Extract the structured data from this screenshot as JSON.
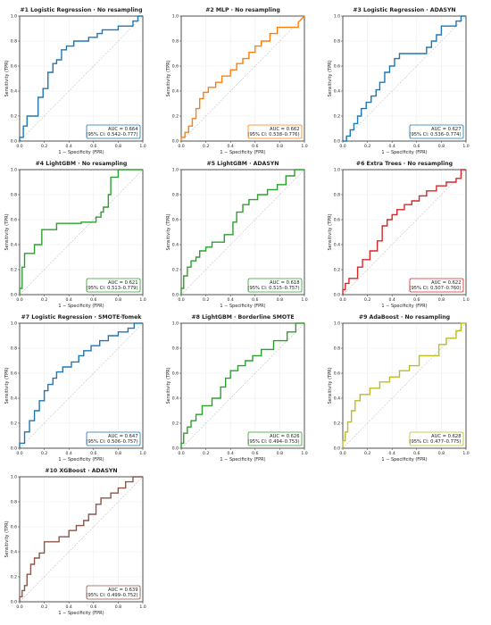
{
  "chart_data": [
    {
      "type": "line",
      "title": "#1  Logistic Regression  ·  No resampling",
      "xlabel": "1 − Specificity (FPR)",
      "ylabel": "Sensitivity (TPR)",
      "xlim": [
        0,
        1
      ],
      "ylim": [
        0,
        1
      ],
      "xticks": [
        "0.0",
        "0.2",
        "0.4",
        "0.6",
        "0.8",
        "1.0"
      ],
      "yticks": [
        "0.0",
        "0.2",
        "0.4",
        "0.6",
        "0.8",
        "1.0"
      ],
      "grid": true,
      "color": "#1f77b4",
      "auc_text": "AUC = 0.664",
      "ci_text": "(95% CI: 0.542–0.777)",
      "legend": "bottom-right",
      "reference_line": "diagonal",
      "x": [
        0,
        0,
        0.03,
        0.03,
        0.06,
        0.06,
        0.15,
        0.15,
        0.19,
        0.19,
        0.23,
        0.23,
        0.27,
        0.27,
        0.3,
        0.3,
        0.34,
        0.34,
        0.38,
        0.38,
        0.44,
        0.44,
        0.56,
        0.56,
        0.63,
        0.63,
        0.67,
        0.67,
        0.8,
        0.8,
        0.92,
        0.92,
        0.96,
        0.96,
        1.0
      ],
      "y": [
        0,
        0.03,
        0.03,
        0.12,
        0.12,
        0.2,
        0.2,
        0.35,
        0.35,
        0.42,
        0.42,
        0.55,
        0.55,
        0.62,
        0.62,
        0.65,
        0.65,
        0.73,
        0.73,
        0.76,
        0.76,
        0.8,
        0.8,
        0.83,
        0.83,
        0.86,
        0.86,
        0.89,
        0.89,
        0.92,
        0.92,
        0.96,
        0.96,
        1.0,
        1.0
      ]
    },
    {
      "type": "line",
      "title": "#2  MLP  ·  No resampling",
      "xlabel": "1 − Specificity (FPR)",
      "ylabel": "Sensitivity (TPR)",
      "xlim": [
        0,
        1
      ],
      "ylim": [
        0,
        1
      ],
      "xticks": [
        "0.0",
        "0.2",
        "0.4",
        "0.6",
        "0.8",
        "1.0"
      ],
      "yticks": [
        "0.0",
        "0.2",
        "0.4",
        "0.6",
        "0.8",
        "1.0"
      ],
      "grid": true,
      "color": "#ff7f0e",
      "auc_text": "AUC = 0.662",
      "ci_text": "(95% CI: 0.538–0.776)",
      "legend": "bottom-right",
      "reference_line": "diagonal",
      "x": [
        0,
        0,
        0.03,
        0.03,
        0.06,
        0.06,
        0.09,
        0.09,
        0.12,
        0.12,
        0.15,
        0.15,
        0.18,
        0.18,
        0.22,
        0.22,
        0.28,
        0.28,
        0.33,
        0.33,
        0.4,
        0.4,
        0.45,
        0.45,
        0.5,
        0.5,
        0.55,
        0.55,
        0.6,
        0.6,
        0.65,
        0.65,
        0.72,
        0.72,
        0.78,
        0.78,
        0.95,
        0.95,
        1.0
      ],
      "y": [
        0,
        0.03,
        0.03,
        0.07,
        0.07,
        0.12,
        0.12,
        0.18,
        0.18,
        0.26,
        0.26,
        0.34,
        0.34,
        0.39,
        0.39,
        0.43,
        0.43,
        0.47,
        0.47,
        0.52,
        0.52,
        0.57,
        0.57,
        0.62,
        0.62,
        0.66,
        0.66,
        0.71,
        0.71,
        0.76,
        0.76,
        0.8,
        0.8,
        0.86,
        0.86,
        0.91,
        0.91,
        0.95,
        1.0
      ]
    },
    {
      "type": "line",
      "title": "#3  Logistic Regression  ·  ADASYN",
      "xlabel": "1 − Specificity (FPR)",
      "ylabel": "Sensitivity (TPR)",
      "xlim": [
        0,
        1
      ],
      "ylim": [
        0,
        1
      ],
      "xticks": [
        "0.0",
        "0.2",
        "0.4",
        "0.6",
        "0.8",
        "1.0"
      ],
      "yticks": [
        "0.0",
        "0.2",
        "0.4",
        "0.6",
        "0.8",
        "1.0"
      ],
      "grid": true,
      "color": "#1f77b4",
      "auc_text": "AUC = 0.627",
      "ci_text": "(95% CI: 0.536–0.774)",
      "legend": "bottom-right",
      "reference_line": "diagonal",
      "x": [
        0,
        0.03,
        0.03,
        0.06,
        0.06,
        0.09,
        0.09,
        0.12,
        0.12,
        0.15,
        0.15,
        0.19,
        0.19,
        0.23,
        0.23,
        0.27,
        0.27,
        0.3,
        0.3,
        0.34,
        0.34,
        0.38,
        0.38,
        0.42,
        0.42,
        0.46,
        0.46,
        0.68,
        0.68,
        0.72,
        0.72,
        0.76,
        0.76,
        0.8,
        0.8,
        0.92,
        0.92,
        0.96,
        0.96,
        1.0
      ],
      "y": [
        0,
        0,
        0.04,
        0.04,
        0.09,
        0.09,
        0.14,
        0.14,
        0.2,
        0.2,
        0.26,
        0.26,
        0.31,
        0.31,
        0.36,
        0.36,
        0.41,
        0.41,
        0.47,
        0.47,
        0.55,
        0.55,
        0.6,
        0.6,
        0.66,
        0.66,
        0.7,
        0.7,
        0.75,
        0.75,
        0.8,
        0.8,
        0.85,
        0.85,
        0.92,
        0.92,
        0.96,
        0.96,
        1.0,
        1.0
      ]
    },
    {
      "type": "line",
      "title": "#4  LightGBM  ·  No resampling",
      "xlabel": "1 − Specificity (FPR)",
      "ylabel": "Sensitivity (TPR)",
      "xlim": [
        0,
        1
      ],
      "ylim": [
        0,
        1
      ],
      "xticks": [
        "0.0",
        "0.2",
        "0.4",
        "0.6",
        "0.8",
        "1.0"
      ],
      "yticks": [
        "0.0",
        "0.2",
        "0.4",
        "0.6",
        "0.8",
        "1.0"
      ],
      "grid": true,
      "color": "#2ca02c",
      "auc_text": "AUC = 0.621",
      "ci_text": "(95% CI: 0.513–0.779)",
      "legend": "bottom-right",
      "reference_line": "diagonal",
      "x": [
        0,
        0,
        0.02,
        0.02,
        0.04,
        0.04,
        0.12,
        0.12,
        0.18,
        0.18,
        0.3,
        0.3,
        0.5,
        0.5,
        0.62,
        0.62,
        0.66,
        0.66,
        0.68,
        0.68,
        0.72,
        0.72,
        0.74,
        0.74,
        0.8,
        0.8,
        1.0
      ],
      "y": [
        0,
        0.05,
        0.05,
        0.22,
        0.22,
        0.33,
        0.33,
        0.4,
        0.4,
        0.52,
        0.52,
        0.57,
        0.57,
        0.58,
        0.58,
        0.62,
        0.62,
        0.66,
        0.66,
        0.7,
        0.7,
        0.8,
        0.8,
        0.94,
        0.94,
        1.0,
        1.0
      ]
    },
    {
      "type": "line",
      "title": "#5  LightGBM  ·  ADASYN",
      "xlabel": "1 − Specificity (FPR)",
      "ylabel": "Sensitivity (TPR)",
      "xlim": [
        0,
        1
      ],
      "ylim": [
        0,
        1
      ],
      "xticks": [
        "0.0",
        "0.2",
        "0.4",
        "0.6",
        "0.8",
        "1.0"
      ],
      "yticks": [
        "0.0",
        "0.2",
        "0.4",
        "0.6",
        "0.8",
        "1.0"
      ],
      "grid": true,
      "color": "#2ca02c",
      "auc_text": "AUC = 0.618",
      "ci_text": "(95% CI: 0.515–0.757)",
      "legend": "bottom-right",
      "reference_line": "diagonal",
      "x": [
        0,
        0,
        0.02,
        0.02,
        0.05,
        0.05,
        0.08,
        0.08,
        0.12,
        0.12,
        0.15,
        0.15,
        0.2,
        0.2,
        0.25,
        0.25,
        0.35,
        0.35,
        0.42,
        0.42,
        0.45,
        0.45,
        0.5,
        0.5,
        0.55,
        0.55,
        0.62,
        0.62,
        0.7,
        0.7,
        0.78,
        0.78,
        0.85,
        0.85,
        0.92,
        0.92,
        1.0
      ],
      "y": [
        0,
        0.05,
        0.05,
        0.15,
        0.15,
        0.22,
        0.22,
        0.27,
        0.27,
        0.3,
        0.3,
        0.35,
        0.35,
        0.38,
        0.38,
        0.42,
        0.42,
        0.48,
        0.48,
        0.58,
        0.58,
        0.66,
        0.66,
        0.72,
        0.72,
        0.76,
        0.76,
        0.8,
        0.8,
        0.84,
        0.84,
        0.88,
        0.88,
        0.95,
        0.95,
        1.0,
        1.0
      ]
    },
    {
      "type": "line",
      "title": "#6  Extra Trees  ·  No resampling",
      "xlabel": "1 − Specificity (FPR)",
      "ylabel": "Sensitivity (TPR)",
      "xlim": [
        0,
        1
      ],
      "ylim": [
        0,
        1
      ],
      "xticks": [
        "0.0",
        "0.2",
        "0.4",
        "0.6",
        "0.8",
        "1.0"
      ],
      "yticks": [
        "0.0",
        "0.2",
        "0.4",
        "0.6",
        "0.8",
        "1.0"
      ],
      "grid": true,
      "color": "#d62728",
      "auc_text": "AUC = 0.622",
      "ci_text": "(95% CI: 0.507–0.760)",
      "legend": "bottom-right",
      "reference_line": "diagonal",
      "x": [
        0,
        0,
        0.02,
        0.02,
        0.05,
        0.05,
        0.12,
        0.12,
        0.16,
        0.16,
        0.22,
        0.22,
        0.28,
        0.28,
        0.32,
        0.32,
        0.36,
        0.36,
        0.4,
        0.4,
        0.44,
        0.44,
        0.5,
        0.5,
        0.56,
        0.56,
        0.62,
        0.62,
        0.68,
        0.68,
        0.76,
        0.76,
        0.84,
        0.84,
        0.92,
        0.92,
        0.96,
        0.96,
        1.0
      ],
      "y": [
        0,
        0.04,
        0.04,
        0.09,
        0.09,
        0.13,
        0.13,
        0.22,
        0.22,
        0.28,
        0.28,
        0.35,
        0.35,
        0.43,
        0.43,
        0.55,
        0.55,
        0.6,
        0.6,
        0.64,
        0.64,
        0.68,
        0.68,
        0.72,
        0.72,
        0.75,
        0.75,
        0.79,
        0.79,
        0.83,
        0.83,
        0.87,
        0.87,
        0.9,
        0.9,
        0.93,
        0.93,
        1.0,
        1.0
      ]
    },
    {
      "type": "line",
      "title": "#7  Logistic Regression  ·  SMOTE-Tomek",
      "xlabel": "1 − Specificity (FPR)",
      "ylabel": "Sensitivity (TPR)",
      "xlim": [
        0,
        1
      ],
      "ylim": [
        0,
        1
      ],
      "xticks": [
        "0.0",
        "0.2",
        "0.4",
        "0.6",
        "0.8",
        "1.0"
      ],
      "yticks": [
        "0.0",
        "0.2",
        "0.4",
        "0.6",
        "0.8",
        "1.0"
      ],
      "grid": true,
      "color": "#1f77b4",
      "auc_text": "AUC = 0.647",
      "ci_text": "(95% CI: 0.506–0.757)",
      "legend": "bottom-right",
      "reference_line": "diagonal",
      "x": [
        0,
        0,
        0.04,
        0.04,
        0.08,
        0.08,
        0.12,
        0.12,
        0.16,
        0.16,
        0.2,
        0.2,
        0.23,
        0.23,
        0.27,
        0.27,
        0.3,
        0.3,
        0.35,
        0.35,
        0.42,
        0.42,
        0.48,
        0.48,
        0.52,
        0.52,
        0.58,
        0.58,
        0.65,
        0.65,
        0.72,
        0.72,
        0.8,
        0.8,
        0.88,
        0.88,
        0.93,
        0.93,
        1.0
      ],
      "y": [
        0,
        0.04,
        0.04,
        0.13,
        0.13,
        0.22,
        0.22,
        0.3,
        0.3,
        0.38,
        0.38,
        0.46,
        0.46,
        0.51,
        0.51,
        0.56,
        0.56,
        0.61,
        0.61,
        0.65,
        0.65,
        0.69,
        0.69,
        0.74,
        0.74,
        0.78,
        0.78,
        0.82,
        0.82,
        0.86,
        0.86,
        0.9,
        0.9,
        0.93,
        0.93,
        0.96,
        0.96,
        1.0,
        1.0
      ]
    },
    {
      "type": "line",
      "title": "#8  LightGBM  ·  Borderline SMOTE",
      "xlabel": "1 − Specificity (FPR)",
      "ylabel": "Sensitivity (TPR)",
      "xlim": [
        0,
        1
      ],
      "ylim": [
        0,
        1
      ],
      "xticks": [
        "0.0",
        "0.2",
        "0.4",
        "0.6",
        "0.8",
        "1.0"
      ],
      "yticks": [
        "0.0",
        "0.2",
        "0.4",
        "0.6",
        "0.8",
        "1.0"
      ],
      "grid": true,
      "color": "#2ca02c",
      "auc_text": "AUC = 0.626",
      "ci_text": "(95% CI: 0.494–0.753)",
      "legend": "bottom-right",
      "reference_line": "diagonal",
      "x": [
        0,
        0,
        0.02,
        0.02,
        0.05,
        0.05,
        0.08,
        0.08,
        0.12,
        0.12,
        0.17,
        0.17,
        0.25,
        0.25,
        0.32,
        0.32,
        0.36,
        0.36,
        0.4,
        0.4,
        0.46,
        0.46,
        0.52,
        0.52,
        0.58,
        0.58,
        0.65,
        0.65,
        0.75,
        0.75,
        0.86,
        0.86,
        0.93,
        0.93,
        1.0
      ],
      "y": [
        0,
        0.04,
        0.04,
        0.12,
        0.12,
        0.17,
        0.17,
        0.22,
        0.22,
        0.27,
        0.27,
        0.34,
        0.34,
        0.4,
        0.4,
        0.49,
        0.49,
        0.56,
        0.56,
        0.62,
        0.62,
        0.66,
        0.66,
        0.7,
        0.7,
        0.74,
        0.74,
        0.79,
        0.79,
        0.86,
        0.86,
        0.93,
        0.93,
        1.0,
        1.0
      ]
    },
    {
      "type": "line",
      "title": "#9  AdaBoost  ·  No resampling",
      "xlabel": "1 − Specificity (FPR)",
      "ylabel": "Sensitivity (TPR)",
      "xlim": [
        0,
        1
      ],
      "ylim": [
        0,
        1
      ],
      "xticks": [
        "0.0",
        "0.2",
        "0.4",
        "0.6",
        "0.8",
        "1.0"
      ],
      "yticks": [
        "0.0",
        "0.2",
        "0.4",
        "0.6",
        "0.8",
        "1.0"
      ],
      "grid": true,
      "color": "#bcbd22",
      "auc_text": "AUC = 0.628",
      "ci_text": "(95% CI: 0.477–0.775)",
      "legend": "bottom-right",
      "reference_line": "diagonal",
      "x": [
        0,
        0,
        0.02,
        0.02,
        0.04,
        0.04,
        0.07,
        0.07,
        0.1,
        0.1,
        0.14,
        0.14,
        0.22,
        0.22,
        0.3,
        0.3,
        0.38,
        0.38,
        0.46,
        0.46,
        0.54,
        0.54,
        0.62,
        0.62,
        0.78,
        0.78,
        0.84,
        0.84,
        0.92,
        0.92,
        0.96,
        0.96,
        1.0
      ],
      "y": [
        0,
        0.06,
        0.06,
        0.13,
        0.13,
        0.21,
        0.21,
        0.3,
        0.3,
        0.38,
        0.38,
        0.43,
        0.43,
        0.48,
        0.48,
        0.53,
        0.53,
        0.57,
        0.57,
        0.62,
        0.62,
        0.66,
        0.66,
        0.74,
        0.74,
        0.83,
        0.83,
        0.88,
        0.88,
        0.94,
        0.94,
        1.0,
        1.0
      ]
    },
    {
      "type": "line",
      "title": "#10  XGBoost  ·  ADASYN",
      "xlabel": "1 − Specificity (FPR)",
      "ylabel": "Sensitivity (TPR)",
      "xlim": [
        0,
        1
      ],
      "ylim": [
        0,
        1
      ],
      "xticks": [
        "0.0",
        "0.2",
        "0.4",
        "0.6",
        "0.8",
        "1.0"
      ],
      "yticks": [
        "0.0",
        "0.2",
        "0.4",
        "0.6",
        "0.8",
        "1.0"
      ],
      "grid": true,
      "color": "#8c564b",
      "auc_text": "AUC = 0.639",
      "ci_text": "(95% CI: 0.499–0.752)",
      "legend": "bottom-right",
      "reference_line": "diagonal",
      "x": [
        0,
        0,
        0.02,
        0.02,
        0.04,
        0.04,
        0.06,
        0.06,
        0.09,
        0.09,
        0.12,
        0.12,
        0.16,
        0.16,
        0.2,
        0.2,
        0.32,
        0.32,
        0.4,
        0.4,
        0.46,
        0.46,
        0.52,
        0.52,
        0.56,
        0.56,
        0.62,
        0.62,
        0.66,
        0.66,
        0.74,
        0.74,
        0.8,
        0.8,
        0.86,
        0.86,
        0.92,
        0.92,
        1.0
      ],
      "y": [
        0,
        0.04,
        0.04,
        0.09,
        0.09,
        0.13,
        0.13,
        0.22,
        0.22,
        0.3,
        0.3,
        0.35,
        0.35,
        0.39,
        0.39,
        0.48,
        0.48,
        0.52,
        0.52,
        0.57,
        0.57,
        0.61,
        0.61,
        0.65,
        0.65,
        0.7,
        0.7,
        0.78,
        0.78,
        0.83,
        0.83,
        0.87,
        0.87,
        0.91,
        0.91,
        0.96,
        0.96,
        1.0,
        1.0
      ]
    }
  ]
}
